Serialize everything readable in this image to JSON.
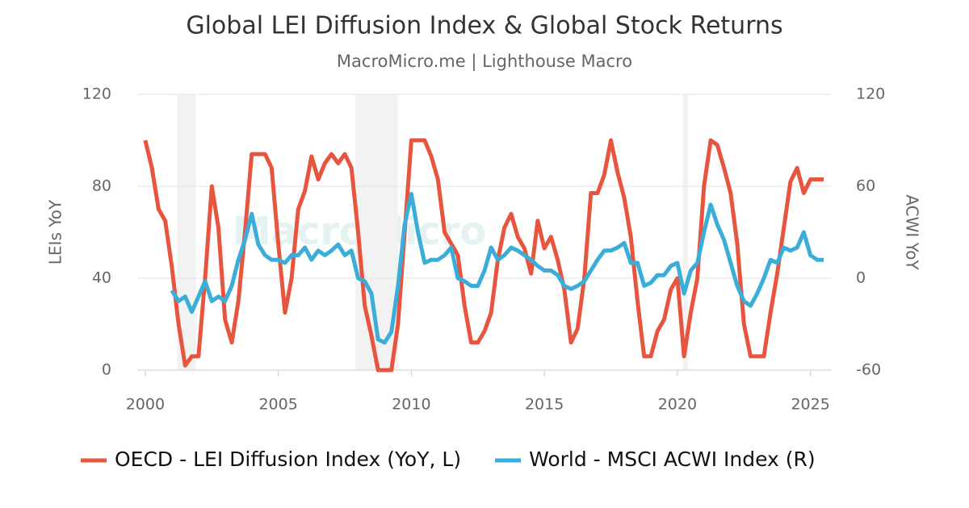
{
  "chart_data": {
    "type": "line",
    "title": "Global LEI Diffusion Index & Global Stock Returns",
    "subtitle": "MacroMicro.me | Lighthouse Macro",
    "watermark": "MacroMicro",
    "y_label": "LEIs YoY",
    "y2_label": "ACWI YoY",
    "xlim": [
      1999.7,
      2025.8
    ],
    "xticks": [
      2000,
      2005,
      2010,
      2015,
      2020,
      2025
    ],
    "ylim": [
      0,
      120
    ],
    "yticks": [
      0,
      40,
      80,
      120
    ],
    "y2lim": [
      -60,
      120
    ],
    "y2ticks": [
      -60,
      0,
      60,
      120
    ],
    "grid": true,
    "shaded_periods": [
      [
        2001.2,
        2001.9
      ],
      [
        2007.9,
        2009.5
      ],
      [
        2020.2,
        2020.4
      ]
    ],
    "x": [
      2000,
      2000.25,
      2000.5,
      2000.75,
      2001,
      2001.25,
      2001.5,
      2001.75,
      2002,
      2002.25,
      2002.5,
      2002.75,
      2003,
      2003.25,
      2003.5,
      2003.75,
      2004,
      2004.25,
      2004.5,
      2004.75,
      2005,
      2005.25,
      2005.5,
      2005.75,
      2006,
      2006.25,
      2006.5,
      2006.75,
      2007,
      2007.25,
      2007.5,
      2007.75,
      2008,
      2008.25,
      2008.5,
      2008.75,
      2009,
      2009.25,
      2009.5,
      2009.75,
      2010,
      2010.25,
      2010.5,
      2010.75,
      2011,
      2011.25,
      2011.5,
      2011.75,
      2012,
      2012.25,
      2012.5,
      2012.75,
      2013,
      2013.25,
      2013.5,
      2013.75,
      2014,
      2014.25,
      2014.5,
      2014.75,
      2015,
      2015.25,
      2015.5,
      2015.75,
      2016,
      2016.25,
      2016.5,
      2016.75,
      2017,
      2017.25,
      2017.5,
      2017.75,
      2018,
      2018.25,
      2018.5,
      2018.75,
      2019,
      2019.25,
      2019.5,
      2019.75,
      2020,
      2020.25,
      2020.5,
      2020.75,
      2021,
      2021.25,
      2021.5,
      2021.75,
      2022,
      2022.25,
      2022.5,
      2022.75,
      2023,
      2023.25,
      2023.5,
      2023.75,
      2024,
      2024.25,
      2024.5,
      2024.75,
      2025,
      2025.25,
      2025.5
    ],
    "series": [
      {
        "name": "OECD - LEI Diffusion Index (YoY, L)",
        "color": "#e8553e",
        "values": [
          100,
          88,
          70,
          65,
          45,
          20,
          2,
          6,
          6,
          40,
          80,
          62,
          22,
          12,
          30,
          60,
          94,
          94,
          94,
          88,
          55,
          25,
          40,
          70,
          78,
          93,
          83,
          90,
          94,
          90,
          94,
          88,
          60,
          28,
          15,
          0,
          0,
          0,
          20,
          60,
          100,
          100,
          100,
          93,
          83,
          60,
          55,
          50,
          28,
          12,
          12,
          17,
          25,
          48,
          62,
          68,
          58,
          53,
          42,
          65,
          53,
          58,
          48,
          35,
          12,
          18,
          40,
          77,
          77,
          85,
          100,
          86,
          75,
          58,
          30,
          6,
          6,
          17,
          22,
          35,
          40,
          6,
          25,
          40,
          80,
          100,
          98,
          88,
          77,
          55,
          20,
          6,
          6,
          6,
          25,
          42,
          62,
          82,
          88,
          77,
          83,
          83,
          83
        ]
      },
      {
        "name": "World - MSCI ACWI Index (R)",
        "color": "#3aaed8",
        "axis": "y2",
        "values": [
          null,
          null,
          null,
          null,
          -8,
          -15,
          -12,
          -22,
          -12,
          -2,
          -15,
          -12,
          -15,
          -5,
          12,
          25,
          42,
          22,
          15,
          12,
          12,
          10,
          15,
          15,
          20,
          12,
          18,
          15,
          18,
          22,
          15,
          18,
          0,
          -2,
          -10,
          -40,
          -42,
          -35,
          -5,
          35,
          55,
          30,
          10,
          12,
          12,
          15,
          20,
          0,
          -2,
          -5,
          -5,
          5,
          20,
          12,
          15,
          20,
          18,
          15,
          12,
          8,
          5,
          5,
          2,
          -5,
          -7,
          -5,
          -2,
          5,
          12,
          18,
          18,
          20,
          23,
          10,
          10,
          -5,
          -3,
          2,
          2,
          8,
          10,
          -10,
          5,
          10,
          30,
          48,
          35,
          25,
          10,
          -5,
          -15,
          -18,
          -10,
          0,
          12,
          10,
          20,
          18,
          20,
          30,
          15,
          12,
          12
        ]
      }
    ]
  }
}
